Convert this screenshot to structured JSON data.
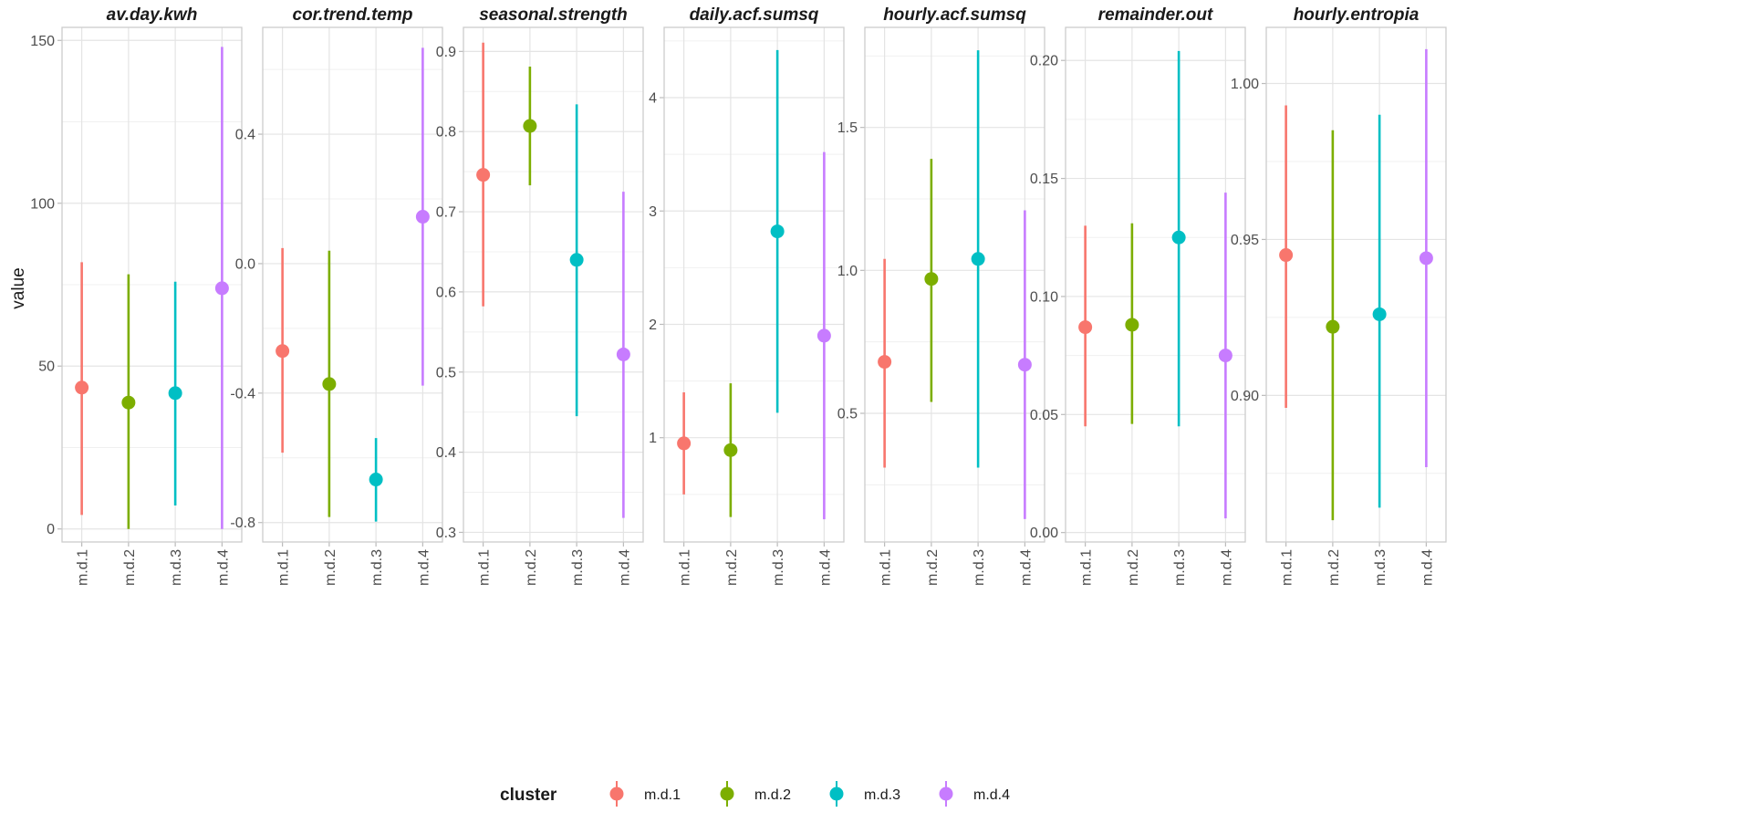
{
  "chart_data": {
    "type": "scatter",
    "subtype": "point-range (faceted)",
    "ylabel": "value",
    "categories": [
      "m.d.1",
      "m.d.2",
      "m.d.3",
      "m.d.4"
    ],
    "legend": {
      "title": "cluster",
      "position": "bottom",
      "entries": [
        {
          "label": "m.d.1",
          "color": "#F8766D"
        },
        {
          "label": "m.d.2",
          "color": "#7CAE00"
        },
        {
          "label": "m.d.3",
          "color": "#00BFC4"
        },
        {
          "label": "m.d.4",
          "color": "#C77CFF"
        }
      ]
    },
    "grid": true,
    "panels": [
      {
        "title": "av.day.kwh",
        "ylim": [
          -4,
          154
        ],
        "yticks": [
          0,
          50,
          100,
          150
        ],
        "ytick_labels": [
          "0",
          "50",
          "100",
          "150"
        ],
        "series": [
          {
            "cluster": "m.d.1",
            "low": 4.3,
            "mid": 43.4,
            "high": 81.9
          },
          {
            "cluster": "m.d.2",
            "low": 0,
            "mid": 38.8,
            "high": 78.2
          },
          {
            "cluster": "m.d.3",
            "low": 7.2,
            "mid": 41.7,
            "high": 75.9
          },
          {
            "cluster": "m.d.4",
            "low": 0,
            "mid": 73.9,
            "high": 148.0
          }
        ]
      },
      {
        "title": "cor.trend.temp",
        "ylim": [
          -0.86,
          0.73
        ],
        "yticks": [
          -0.8,
          -0.4,
          0.0,
          0.4
        ],
        "ytick_labels": [
          "-0.8",
          "-0.4",
          "0.0",
          "0.4"
        ],
        "series": [
          {
            "cluster": "m.d.1",
            "low": -0.584,
            "mid": -0.27,
            "high": 0.048
          },
          {
            "cluster": "m.d.2",
            "low": -0.783,
            "mid": -0.372,
            "high": 0.04
          },
          {
            "cluster": "m.d.3",
            "low": -0.797,
            "mid": -0.667,
            "high": -0.539
          },
          {
            "cluster": "m.d.4",
            "low": -0.377,
            "mid": 0.145,
            "high": 0.667
          }
        ]
      },
      {
        "title": "seasonal.strength",
        "ylim": [
          0.288,
          0.93
        ],
        "yticks": [
          0.3,
          0.4,
          0.5,
          0.6,
          0.7,
          0.8,
          0.9
        ],
        "ytick_labels": [
          "0.3",
          "0.4",
          "0.5",
          "0.6",
          "0.7",
          "0.8",
          "0.9"
        ],
        "series": [
          {
            "cluster": "m.d.1",
            "low": 0.582,
            "mid": 0.746,
            "high": 0.911
          },
          {
            "cluster": "m.d.2",
            "low": 0.733,
            "mid": 0.807,
            "high": 0.881
          },
          {
            "cluster": "m.d.3",
            "low": 0.445,
            "mid": 0.64,
            "high": 0.834
          },
          {
            "cluster": "m.d.4",
            "low": 0.318,
            "mid": 0.522,
            "high": 0.725
          }
        ]
      },
      {
        "title": "daily.acf.sumsq",
        "ylim": [
          0.08,
          4.62
        ],
        "yticks": [
          1,
          2,
          3,
          4
        ],
        "ytick_labels": [
          "1",
          "2",
          "3",
          "4"
        ],
        "series": [
          {
            "cluster": "m.d.1",
            "low": 0.5,
            "mid": 0.95,
            "high": 1.4
          },
          {
            "cluster": "m.d.2",
            "low": 0.3,
            "mid": 0.89,
            "high": 1.48
          },
          {
            "cluster": "m.d.3",
            "low": 1.22,
            "mid": 2.82,
            "high": 4.42
          },
          {
            "cluster": "m.d.4",
            "low": 0.28,
            "mid": 1.9,
            "high": 3.52
          }
        ]
      },
      {
        "title": "hourly.acf.sumsq",
        "ylim": [
          0.05,
          1.85
        ],
        "yticks": [
          0.5,
          1.0,
          1.5
        ],
        "ytick_labels": [
          "0.5",
          "1.0",
          "1.5"
        ],
        "series": [
          {
            "cluster": "m.d.1",
            "low": 0.31,
            "mid": 0.68,
            "high": 1.04
          },
          {
            "cluster": "m.d.2",
            "low": 0.54,
            "mid": 0.97,
            "high": 1.39
          },
          {
            "cluster": "m.d.3",
            "low": 0.31,
            "mid": 1.04,
            "high": 1.77
          },
          {
            "cluster": "m.d.4",
            "low": 0.13,
            "mid": 0.67,
            "high": 1.21
          }
        ]
      },
      {
        "title": "remainder.out",
        "ylim": [
          -0.004,
          0.214
        ],
        "yticks": [
          0.0,
          0.05,
          0.1,
          0.15,
          0.2
        ],
        "ytick_labels": [
          "0.00",
          "0.05",
          "0.10",
          "0.15",
          "0.20"
        ],
        "series": [
          {
            "cluster": "m.d.1",
            "low": 0.045,
            "mid": 0.087,
            "high": 0.13
          },
          {
            "cluster": "m.d.2",
            "low": 0.046,
            "mid": 0.088,
            "high": 0.131
          },
          {
            "cluster": "m.d.3",
            "low": 0.045,
            "mid": 0.125,
            "high": 0.204
          },
          {
            "cluster": "m.d.4",
            "low": 0.006,
            "mid": 0.075,
            "high": 0.144
          }
        ]
      },
      {
        "title": "hourly.entropia",
        "ylim": [
          0.853,
          1.018
        ],
        "yticks": [
          0.9,
          0.95,
          1.0
        ],
        "ytick_labels": [
          "0.90",
          "0.95",
          "1.00"
        ],
        "series": [
          {
            "cluster": "m.d.1",
            "low": 0.896,
            "mid": 0.945,
            "high": 0.993
          },
          {
            "cluster": "m.d.2",
            "low": 0.86,
            "mid": 0.922,
            "high": 0.985
          },
          {
            "cluster": "m.d.3",
            "low": 0.864,
            "mid": 0.926,
            "high": 0.99
          },
          {
            "cluster": "m.d.4",
            "low": 0.877,
            "mid": 0.944,
            "high": 1.011
          }
        ]
      }
    ]
  }
}
